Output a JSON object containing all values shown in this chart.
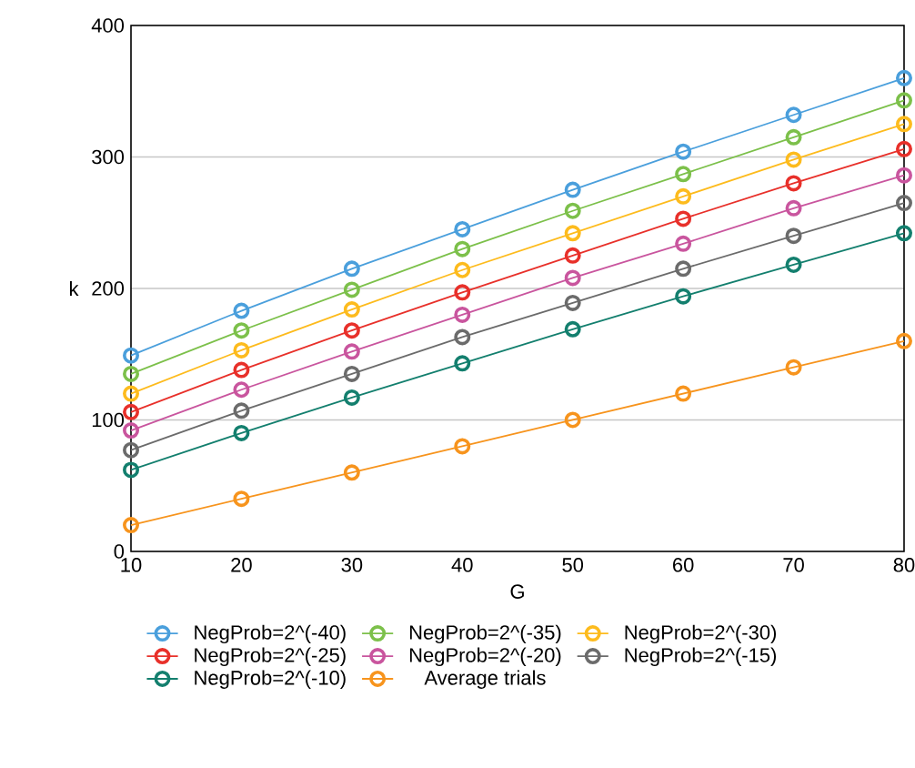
{
  "chart_data": {
    "type": "line",
    "xlabel": "G",
    "ylabel": "k",
    "x": [
      10,
      20,
      30,
      40,
      50,
      60,
      70,
      80
    ],
    "xlim": [
      10,
      80
    ],
    "xticks": [
      10,
      20,
      30,
      40,
      50,
      60,
      70,
      80
    ],
    "ylim": [
      0,
      400
    ],
    "yticks": [
      0,
      100,
      200,
      300,
      400
    ],
    "grid": "y",
    "legend": "bottom",
    "marker": "circle",
    "line_style": "solid",
    "series": [
      {
        "name": "NegProb=2^(-40)",
        "color": "#4a9fdc",
        "values": [
          149,
          183,
          215,
          245,
          275,
          304,
          332,
          360
        ]
      },
      {
        "name": "NegProb=2^(-35)",
        "color": "#7cc04a",
        "values": [
          135,
          168,
          199,
          230,
          259,
          287,
          315,
          343
        ]
      },
      {
        "name": "NegProb=2^(-30)",
        "color": "#fdbb1d",
        "values": [
          120,
          153,
          184,
          214,
          242,
          270,
          298,
          325
        ]
      },
      {
        "name": "NegProb=2^(-25)",
        "color": "#e8302a",
        "values": [
          106,
          138,
          168,
          197,
          225,
          253,
          280,
          306
        ]
      },
      {
        "name": "NegProb=2^(-20)",
        "color": "#c9559e",
        "values": [
          92,
          123,
          152,
          180,
          208,
          234,
          261,
          286
        ]
      },
      {
        "name": "NegProb=2^(-15)",
        "color": "#6b6b6b",
        "values": [
          77,
          107,
          135,
          163,
          189,
          215,
          240,
          265
        ]
      },
      {
        "name": "NegProb=2^(-10)",
        "color": "#137f6e",
        "values": [
          62,
          90,
          117,
          143,
          169,
          194,
          218,
          242
        ]
      },
      {
        "name": "Average trials",
        "color": "#f7941d",
        "values": [
          20,
          40,
          60,
          80,
          100,
          120,
          140,
          160
        ]
      }
    ]
  }
}
